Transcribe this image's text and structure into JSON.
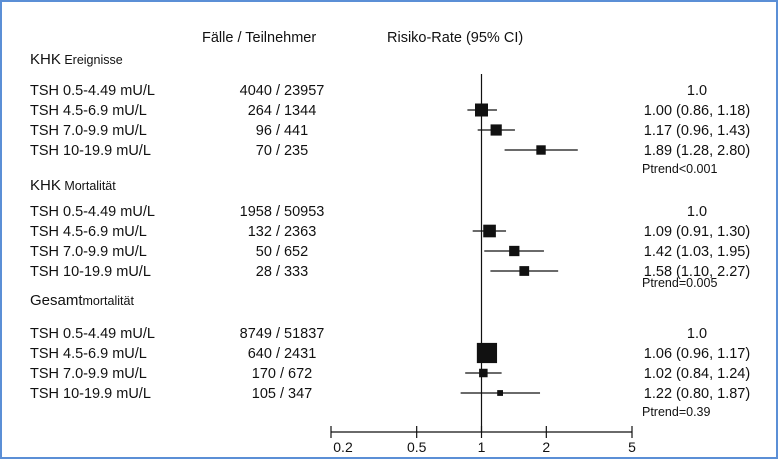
{
  "headers": {
    "cases": "Fälle / Teilnehmer",
    "risk": "Risiko-Rate (95% CI)"
  },
  "chart_data": {
    "type": "forest",
    "x_axis": {
      "scale": "log",
      "ticks": [
        0.2,
        0.5,
        1,
        2,
        5
      ],
      "tick_labels": [
        "0.2",
        "0.5",
        "1",
        "2",
        "5"
      ],
      "range": [
        0.2,
        5
      ],
      "reference_line": 1
    },
    "groups": [
      {
        "title": "KHK",
        "subtitle": "Ereignisse",
        "ptrend": "Ptrend<0.001",
        "rows": [
          {
            "label": "TSH 0.5-4.49 mU/L",
            "cases": "4040 / 23957",
            "text": "1.0",
            "hr": 1.0,
            "lo": null,
            "hi": null,
            "weight": null
          },
          {
            "label": "TSH 4.5-6.9 mU/L",
            "cases": "264 / 1344",
            "text": "1.00 (0.86, 1.18)",
            "hr": 1.0,
            "lo": 0.86,
            "hi": 1.18,
            "weight": 0.5
          },
          {
            "label": "TSH 7.0-9.9 mU/L",
            "cases": "96 / 441",
            "text": "1.17 (0.96, 1.43)",
            "hr": 1.17,
            "lo": 0.96,
            "hi": 1.43,
            "weight": 0.4
          },
          {
            "label": "TSH 10-19.9 mU/L",
            "cases": "70 / 235",
            "text": "1.89 (1.28, 2.80)",
            "hr": 1.89,
            "lo": 1.28,
            "hi": 2.8,
            "weight": 0.3
          }
        ]
      },
      {
        "title": "KHK",
        "subtitle": "Mortalität",
        "ptrend": "Ptrend=0.005",
        "rows": [
          {
            "label": "TSH 0.5-4.49 mU/L",
            "cases": "1958 / 50953",
            "text": "1.0",
            "hr": 1.0,
            "lo": null,
            "hi": null,
            "weight": null
          },
          {
            "label": "TSH 4.5-6.9 mU/L",
            "cases": "132 / 2363",
            "text": "1.09 (0.91, 1.30)",
            "hr": 1.09,
            "lo": 0.91,
            "hi": 1.3,
            "weight": 0.48
          },
          {
            "label": "TSH 7.0-9.9 mU/L",
            "cases": "50 / 652",
            "text": "1.42 (1.03, 1.95)",
            "hr": 1.42,
            "lo": 1.03,
            "hi": 1.95,
            "weight": 0.35
          },
          {
            "label": "TSH 10-19.9 mU/L",
            "cases": "28 / 333",
            "text": "1.58 (1.10, 2.27)",
            "hr": 1.58,
            "lo": 1.1,
            "hi": 2.27,
            "weight": 0.32
          }
        ]
      },
      {
        "title": "Gesamt",
        "subtitle": "mortalität",
        "ptrend": "Ptrend=0.39",
        "rows": [
          {
            "label": "TSH 0.5-4.49 mU/L",
            "cases": "8749 / 51837",
            "text": "1.0",
            "hr": 1.0,
            "lo": null,
            "hi": null,
            "weight": null
          },
          {
            "label": "TSH 4.5-6.9 mU/L",
            "cases": "640 / 2431",
            "text": "1.06 (0.96, 1.17)",
            "hr": 1.06,
            "lo": 0.96,
            "hi": 1.17,
            "weight": 0.9
          },
          {
            "label": "TSH 7.0-9.9 mU/L",
            "cases": "170 / 672",
            "text": "1.02 (0.84, 1.24)",
            "hr": 1.02,
            "lo": 0.84,
            "hi": 1.24,
            "weight": 0.25
          },
          {
            "label": "TSH 10-19.9 mU/L",
            "cases": "105 / 347",
            "text": "1.22 (0.80, 1.87)",
            "hr": 1.22,
            "lo": 0.8,
            "hi": 1.87,
            "weight": 0.1
          }
        ]
      }
    ]
  }
}
